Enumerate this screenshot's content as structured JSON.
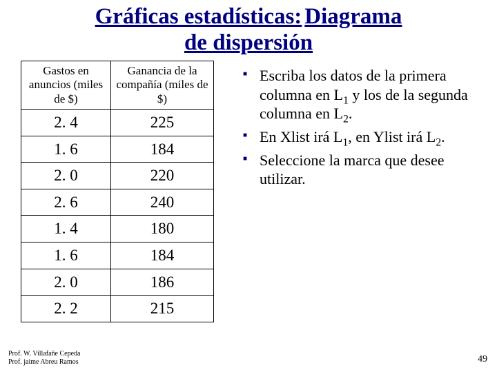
{
  "title": {
    "line1": "Gráficas estadísticas:",
    "line2": "Diagrama",
    "line3": "de dispersión",
    "color": "#000080",
    "fontsize": 33
  },
  "table": {
    "columns": [
      "Gastos en anuncios (miles de $)",
      "Ganancia de la compañía (miles de $)"
    ],
    "rows": [
      [
        "2. 4",
        "225"
      ],
      [
        "1. 6",
        "184"
      ],
      [
        "2. 0",
        "220"
      ],
      [
        "2. 6",
        "240"
      ],
      [
        "1. 4",
        "180"
      ],
      [
        "1. 6",
        "184"
      ],
      [
        "2. 0",
        "186"
      ],
      [
        "2. 2",
        "215"
      ]
    ],
    "border_color": "#000000",
    "header_fontsize": 17,
    "cell_fontsize": 23
  },
  "bullets": {
    "items": [
      {
        "pre": "Escriba los datos de la primera columna en L",
        "sub1": "1",
        "mid": " y los de la segunda columna en L",
        "sub2": "2",
        "post": "."
      },
      {
        "pre": "En Xlist irá L",
        "sub1": "1",
        "mid": ", en Ylist irá L",
        "sub2": "2",
        "post": "."
      },
      {
        "pre": "Seleccione la marca que desee utilizar.",
        "sub1": "",
        "mid": "",
        "sub2": "",
        "post": ""
      }
    ],
    "marker_color": "#000080",
    "fontsize": 22
  },
  "footer": {
    "line1": "Prof. W. Villafañe Cepeda",
    "line2": "Prof. jaime Abreu Ramos",
    "page": "49"
  },
  "colors": {
    "background": "#ffffff",
    "text": "#000000",
    "accent": "#000080"
  }
}
